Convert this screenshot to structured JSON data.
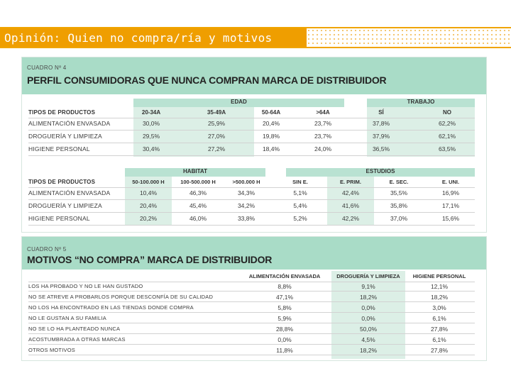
{
  "slide_title": "Opinión: Quien no compra/ría y motivos",
  "cuadro4": {
    "label": "CUADRO Nº 4",
    "title": "PERFIL CONSUMIDORAS QUE NUNCA COMPRAN MARCA DE DISTRIBUIDOR",
    "table1": {
      "group_edad": "EDAD",
      "group_trabajo": "TRABAJO",
      "col_tipos": "TIPOS DE PRODUCTOS",
      "columns": [
        "20-34A",
        "35-49A",
        "50-64A",
        ">64A",
        "SÍ",
        "NO"
      ],
      "rows": [
        {
          "label": "ALIMENTACIÓN ENVASADA",
          "values": [
            "30,0%",
            "25,9%",
            "20,4%",
            "23,7%",
            "37,8%",
            "62,2%"
          ]
        },
        {
          "label": "DROGUERÍA Y LIMPIEZA",
          "values": [
            "29,5%",
            "27,0%",
            "19,8%",
            "23,7%",
            "37,9%",
            "62,1%"
          ]
        },
        {
          "label": "HIGIENE PERSONAL",
          "values": [
            "30,4%",
            "27,2%",
            "18,4%",
            "24,0%",
            "36,5%",
            "63,5%"
          ]
        }
      ]
    },
    "table2": {
      "group_habitat": "HABITAT",
      "group_estudios": "ESTUDIOS",
      "col_tipos": "TIPOS DE PRODUCTOS",
      "columns": [
        "50-100.000 H",
        "100-500.000 H",
        ">500.000 H",
        "SIN E.",
        "E. PRIM.",
        "E. SEC.",
        "E. UNI."
      ],
      "rows": [
        {
          "label": "ALIMENTACIÓN ENVASADA",
          "values": [
            "10,4%",
            "46,3%",
            "34,3%",
            "5,1%",
            "42,4%",
            "35,5%",
            "16,9%"
          ]
        },
        {
          "label": "DROGUERÍA Y LIMPIEZA",
          "values": [
            "20,4%",
            "45,4%",
            "34,2%",
            "5,4%",
            "41,6%",
            "35,8%",
            "17,1%"
          ]
        },
        {
          "label": "HIGIENE PERSONAL",
          "values": [
            "20,2%",
            "46,0%",
            "33,8%",
            "5,2%",
            "42,2%",
            "37,0%",
            "15,6%"
          ]
        }
      ]
    }
  },
  "cuadro5": {
    "label": "CUADRO Nº 5",
    "title": "MOTIVOS “NO COMPRA” MARCA DE DISTRIBUIDOR",
    "columns": [
      "ALIMENTACIÓN ENVASADA",
      "DROGUERÍA Y LIMPIEZA",
      "HIGIENE PERSONAL"
    ],
    "rows": [
      {
        "label": "LOS HA PROBADO Y NO LE HAN GUSTADO",
        "values": [
          "8,8%",
          "9,1%",
          "12,1%"
        ]
      },
      {
        "label": "NO SE ATREVE A PROBARLOS PORQUE DESCONFÍA DE SU CALIDAD",
        "values": [
          "47,1%",
          "18,2%",
          "18,2%"
        ]
      },
      {
        "label": "NO LOS HA ENCONTRADO EN LAS TIENDAS DONDE COMPRA",
        "values": [
          "5,8%",
          "0,0%",
          "3,0%"
        ]
      },
      {
        "label": "NO LE GUSTAN A SU FAMILIA",
        "values": [
          "5,9%",
          "0,0%",
          "6,1%"
        ]
      },
      {
        "label": "NO SE LO HA PLANTEADO NUNCA",
        "values": [
          "28,8%",
          "50,0%",
          "27,8%"
        ]
      },
      {
        "label": "ACOSTUMBRADA A OTRAS MARCAS",
        "values": [
          "0,0%",
          "4,5%",
          "6,1%"
        ]
      },
      {
        "label": "OTROS MOTIVOS",
        "values": [
          "11,8%",
          "18,2%",
          "27,8%"
        ]
      }
    ]
  }
}
